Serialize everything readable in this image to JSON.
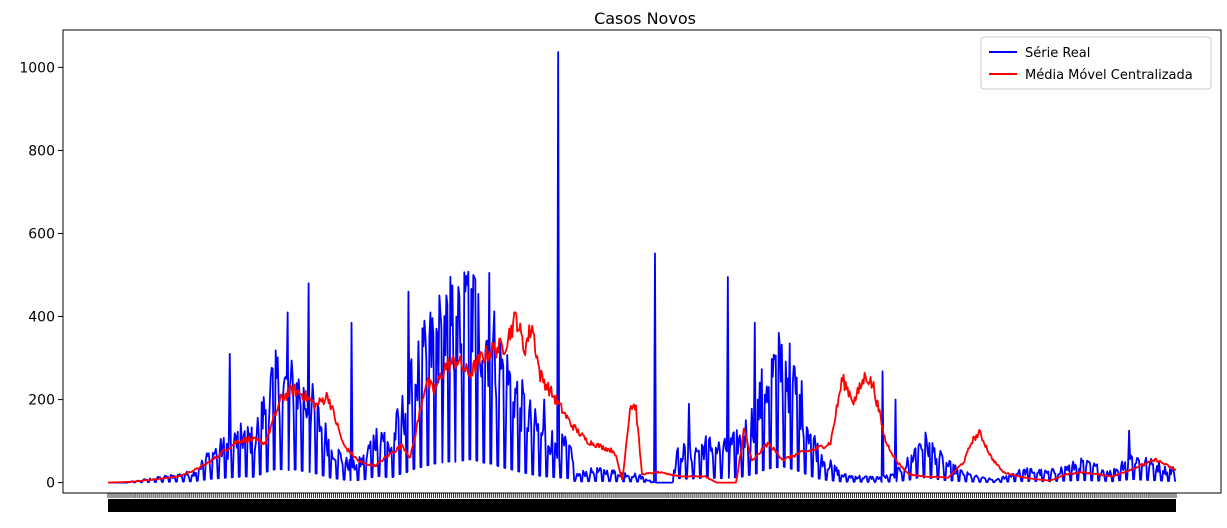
{
  "chart_data": {
    "type": "line",
    "title": "Casos Novos",
    "xlabel": "",
    "ylabel": "",
    "ylim": [
      -25,
      1090
    ],
    "yticks": [
      0,
      200,
      400,
      600,
      800,
      1000
    ],
    "legend": "top-right",
    "grid": false,
    "xtick_labels": "dense, overlapping, unreadable date ticks",
    "n_points": 1071,
    "series": [
      {
        "name": "Série Real",
        "color": "#0000ff",
        "keypoints": [
          [
            0,
            0
          ],
          [
            20,
            0
          ],
          [
            40,
            5
          ],
          [
            60,
            10
          ],
          [
            80,
            15
          ],
          [
            100,
            20
          ],
          [
            110,
            40
          ],
          [
            120,
            60
          ],
          [
            140,
            80
          ],
          [
            160,
            100
          ],
          [
            170,
            90
          ],
          [
            180,
            140
          ],
          [
            190,
            200
          ],
          [
            200,
            220
          ],
          [
            210,
            200
          ],
          [
            220,
            210
          ],
          [
            230,
            180
          ],
          [
            240,
            160
          ],
          [
            250,
            120
          ],
          [
            260,
            80
          ],
          [
            270,
            60
          ],
          [
            280,
            40
          ],
          [
            290,
            35
          ],
          [
            300,
            50
          ],
          [
            310,
            90
          ],
          [
            320,
            110
          ],
          [
            330,
            70
          ],
          [
            340,
            130
          ],
          [
            350,
            170
          ],
          [
            360,
            230
          ],
          [
            370,
            260
          ],
          [
            380,
            300
          ],
          [
            390,
            320
          ],
          [
            400,
            340
          ],
          [
            410,
            330
          ],
          [
            420,
            380
          ],
          [
            430,
            360
          ],
          [
            440,
            320
          ],
          [
            450,
            300
          ],
          [
            460,
            250
          ],
          [
            470,
            220
          ],
          [
            480,
            180
          ],
          [
            490,
            150
          ],
          [
            500,
            120
          ],
          [
            510,
            100
          ],
          [
            520,
            90
          ],
          [
            530,
            80
          ],
          [
            540,
            70
          ],
          [
            548,
            15
          ],
          [
            556,
            20
          ],
          [
            570,
            25
          ],
          [
            600,
            20
          ],
          [
            620,
            15
          ],
          [
            640,
            0
          ],
          [
            660,
            0
          ],
          [
            668,
            70
          ],
          [
            680,
            60
          ],
          [
            700,
            80
          ],
          [
            720,
            70
          ],
          [
            740,
            90
          ],
          [
            760,
            150
          ],
          [
            770,
            220
          ],
          [
            780,
            240
          ],
          [
            790,
            260
          ],
          [
            800,
            220
          ],
          [
            810,
            180
          ],
          [
            820,
            120
          ],
          [
            830,
            70
          ],
          [
            840,
            45
          ],
          [
            850,
            30
          ],
          [
            860,
            15
          ],
          [
            880,
            12
          ],
          [
            900,
            10
          ],
          [
            920,
            15
          ],
          [
            940,
            50
          ],
          [
            950,
            90
          ],
          [
            960,
            80
          ],
          [
            970,
            60
          ],
          [
            980,
            40
          ],
          [
            1000,
            20
          ],
          [
            1020,
            10
          ],
          [
            1040,
            5
          ],
          [
            1060,
            20
          ],
          [
            1080,
            25
          ],
          [
            1100,
            20
          ],
          [
            1120,
            30
          ],
          [
            1140,
            40
          ],
          [
            1160,
            30
          ],
          [
            1175,
            20
          ],
          [
            1190,
            45
          ],
          [
            1200,
            55
          ],
          [
            1210,
            45
          ],
          [
            1220,
            40
          ],
          [
            1230,
            35
          ],
          [
            1240,
            25
          ],
          [
            1250,
            30
          ]
        ],
        "spikes": [
          [
            142,
            310
          ],
          [
            210,
            410
          ],
          [
            235,
            480
          ],
          [
            285,
            385
          ],
          [
            352,
            460
          ],
          [
            390,
            375
          ],
          [
            408,
            400
          ],
          [
            418,
            460
          ],
          [
            422,
            508
          ],
          [
            428,
            500
          ],
          [
            446,
            505
          ],
          [
            510,
            200
          ],
          [
            527,
            1037
          ],
          [
            640,
            552
          ],
          [
            680,
            190
          ],
          [
            725,
            495
          ],
          [
            757,
            385
          ],
          [
            907,
            268
          ],
          [
            922,
            200
          ],
          [
            1195,
            125
          ]
        ]
      },
      {
        "name": "Média Móvel Centralizada",
        "color": "#ff0000",
        "keypoints": [
          [
            0,
            0
          ],
          [
            30,
            2
          ],
          [
            60,
            8
          ],
          [
            90,
            15
          ],
          [
            110,
            30
          ],
          [
            130,
            50
          ],
          [
            150,
            80
          ],
          [
            165,
            100
          ],
          [
            180,
            105
          ],
          [
            200,
            95
          ],
          [
            220,
            200
          ],
          [
            235,
            225
          ],
          [
            250,
            210
          ],
          [
            265,
            185
          ],
          [
            280,
            210
          ],
          [
            300,
            90
          ],
          [
            320,
            50
          ],
          [
            340,
            40
          ],
          [
            360,
            70
          ],
          [
            375,
            90
          ],
          [
            385,
            60
          ],
          [
            395,
            150
          ],
          [
            405,
            245
          ],
          [
            415,
            220
          ],
          [
            430,
            280
          ],
          [
            445,
            295
          ],
          [
            460,
            260
          ],
          [
            475,
            300
          ],
          [
            490,
            320
          ],
          [
            505,
            330
          ],
          [
            520,
            400
          ],
          [
            530,
            320
          ],
          [
            540,
            380
          ],
          [
            550,
            260
          ],
          [
            570,
            200
          ],
          [
            590,
            140
          ],
          [
            610,
            100
          ],
          [
            630,
            85
          ],
          [
            645,
            75
          ],
          [
            655,
            5
          ],
          [
            665,
            185
          ],
          [
            672,
            185
          ],
          [
            680,
            20
          ],
          [
            700,
            25
          ],
          [
            730,
            15
          ],
          [
            760,
            15
          ],
          [
            775,
            0
          ],
          [
            800,
            0
          ],
          [
            810,
            130
          ],
          [
            820,
            50
          ],
          [
            840,
            95
          ],
          [
            860,
            55
          ],
          [
            880,
            70
          ],
          [
            900,
            80
          ],
          [
            920,
            95
          ],
          [
            935,
            250
          ],
          [
            950,
            195
          ],
          [
            965,
            260
          ],
          [
            975,
            230
          ],
          [
            990,
            100
          ],
          [
            1005,
            50
          ],
          [
            1020,
            20
          ],
          [
            1040,
            15
          ],
          [
            1070,
            12
          ],
          [
            1090,
            50
          ],
          [
            1100,
            100
          ],
          [
            1110,
            120
          ],
          [
            1125,
            60
          ],
          [
            1140,
            25
          ],
          [
            1160,
            15
          ],
          [
            1180,
            8
          ],
          [
            1200,
            5
          ],
          [
            1220,
            20
          ],
          [
            1240,
            25
          ],
          [
            1260,
            20
          ],
          [
            1280,
            15
          ],
          [
            1300,
            30
          ],
          [
            1320,
            45
          ],
          [
            1335,
            55
          ],
          [
            1350,
            40
          ],
          [
            1360,
            30
          ]
        ]
      }
    ]
  }
}
